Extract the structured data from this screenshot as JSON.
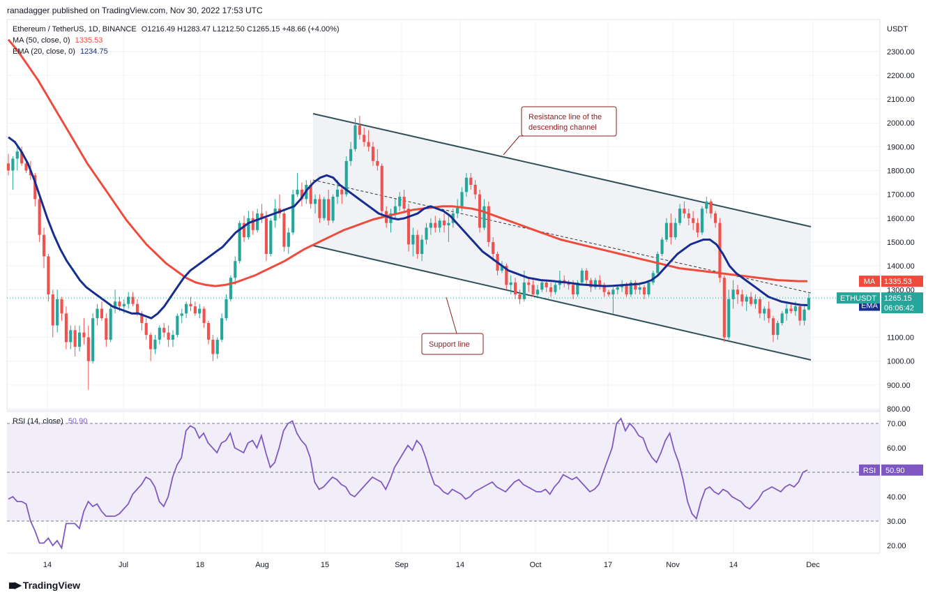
{
  "publisher": {
    "user": "ranadagger",
    "text": "ranadagger published on TradingView.com, Nov 30, 2022 17:53 UTC"
  },
  "legend": {
    "symbol": "Ethereum / TetherUS, 1D, BINANCE",
    "ohlc": "O1216.49 H1283.47 L1212.50 C1265.15 +48.66 (+4.00%)",
    "ma": {
      "label": "MA (50, close, 0)",
      "value": "1335.53"
    },
    "ema": {
      "label": "EMA (20, close, 0)",
      "value": "1234.75"
    }
  },
  "brand": "TradingView",
  "colors": {
    "up": "#26a69a",
    "down": "#ef5350",
    "ma": "#ef4b3c",
    "ema": "#162d8f",
    "rsi": "#7e57c2",
    "channel": "#2f4f57",
    "grid": "#f0f3fa"
  },
  "chart_data": {
    "type": "candlestick",
    "price_unit": "USDT",
    "y_ticks": [
      "2300.00",
      "2200.00",
      "2100.00",
      "2000.00",
      "1900.00",
      "1800.00",
      "1700.00",
      "1600.00",
      "1500.00",
      "1400.00",
      "1300.00",
      "1100.00",
      "1000.00",
      "900.00",
      "800.00"
    ],
    "ylim": [
      780,
      2400
    ],
    "x_ticks": [
      "14",
      "Jul",
      "18",
      "Aug",
      "15",
      "Sep",
      "14",
      "Oct",
      "17",
      "Nov",
      "14",
      "Dec"
    ],
    "current_price": {
      "label": "ETHUSDT",
      "value": "1265.15",
      "countdown": "06:06:42"
    },
    "ma_badge": {
      "label": "MA",
      "value": "1335.53"
    },
    "ema_badge": {
      "label": "EMA",
      "value": "1234.75"
    },
    "candles": [
      [
        1830,
        1870,
        1780,
        1800
      ],
      [
        1800,
        1860,
        1720,
        1850
      ],
      [
        1850,
        1905,
        1800,
        1880
      ],
      [
        1880,
        1900,
        1820,
        1830
      ],
      [
        1830,
        1840,
        1790,
        1800
      ],
      [
        1800,
        1840,
        1760,
        1780
      ],
      [
        1780,
        1790,
        1650,
        1680
      ],
      [
        1680,
        1700,
        1500,
        1530
      ],
      [
        1530,
        1560,
        1390,
        1440
      ],
      [
        1440,
        1450,
        1250,
        1280
      ],
      [
        1280,
        1300,
        1100,
        1150
      ],
      [
        1150,
        1300,
        1120,
        1260
      ],
      [
        1260,
        1270,
        1170,
        1200
      ],
      [
        1200,
        1230,
        1050,
        1080
      ],
      [
        1080,
        1150,
        1050,
        1130
      ],
      [
        1130,
        1150,
        1020,
        1060
      ],
      [
        1060,
        1150,
        1040,
        1120
      ],
      [
        1120,
        1180,
        1070,
        1100
      ],
      [
        1100,
        1150,
        880,
        1000
      ],
      [
        1000,
        1200,
        990,
        1180
      ],
      [
        1180,
        1240,
        1150,
        1220
      ],
      [
        1220,
        1250,
        1170,
        1180
      ],
      [
        1180,
        1200,
        1060,
        1090
      ],
      [
        1090,
        1240,
        1080,
        1220
      ],
      [
        1220,
        1300,
        1200,
        1250
      ],
      [
        1250,
        1270,
        1210,
        1230
      ],
      [
        1230,
        1260,
        1200,
        1240
      ],
      [
        1240,
        1290,
        1220,
        1270
      ],
      [
        1270,
        1290,
        1230,
        1240
      ],
      [
        1240,
        1260,
        1190,
        1200
      ],
      [
        1200,
        1210,
        1130,
        1160
      ],
      [
        1160,
        1180,
        1090,
        1110
      ],
      [
        1110,
        1120,
        1000,
        1050
      ],
      [
        1050,
        1110,
        1030,
        1090
      ],
      [
        1090,
        1150,
        1070,
        1140
      ],
      [
        1140,
        1160,
        1100,
        1120
      ],
      [
        1120,
        1150,
        1060,
        1090
      ],
      [
        1090,
        1130,
        1060,
        1110
      ],
      [
        1110,
        1200,
        1100,
        1190
      ],
      [
        1190,
        1220,
        1160,
        1200
      ],
      [
        1200,
        1250,
        1180,
        1240
      ],
      [
        1240,
        1270,
        1210,
        1230
      ],
      [
        1230,
        1250,
        1190,
        1200
      ],
      [
        1200,
        1240,
        1180,
        1220
      ],
      [
        1220,
        1230,
        1140,
        1160
      ],
      [
        1160,
        1170,
        1070,
        1090
      ],
      [
        1090,
        1110,
        1000,
        1030
      ],
      [
        1030,
        1100,
        1010,
        1090
      ],
      [
        1090,
        1200,
        1080,
        1180
      ],
      [
        1180,
        1280,
        1170,
        1260
      ],
      [
        1260,
        1360,
        1250,
        1350
      ],
      [
        1350,
        1440,
        1320,
        1420
      ],
      [
        1420,
        1590,
        1410,
        1580
      ],
      [
        1580,
        1610,
        1500,
        1520
      ],
      [
        1520,
        1630,
        1510,
        1600
      ],
      [
        1600,
        1630,
        1530,
        1550
      ],
      [
        1550,
        1640,
        1540,
        1620
      ],
      [
        1620,
        1660,
        1580,
        1600
      ],
      [
        1600,
        1630,
        1420,
        1450
      ],
      [
        1450,
        1600,
        1440,
        1590
      ],
      [
        1590,
        1680,
        1560,
        1640
      ],
      [
        1640,
        1700,
        1600,
        1620
      ],
      [
        1620,
        1640,
        1460,
        1480
      ],
      [
        1480,
        1560,
        1450,
        1540
      ],
      [
        1540,
        1720,
        1530,
        1700
      ],
      [
        1700,
        1790,
        1690,
        1720
      ],
      [
        1720,
        1750,
        1650,
        1680
      ],
      [
        1680,
        1760,
        1660,
        1740
      ],
      [
        1740,
        1760,
        1640,
        1660
      ],
      [
        1660,
        1700,
        1620,
        1680
      ],
      [
        1680,
        1700,
        1580,
        1600
      ],
      [
        1600,
        1690,
        1590,
        1680
      ],
      [
        1680,
        1720,
        1570,
        1590
      ],
      [
        1590,
        1700,
        1580,
        1690
      ],
      [
        1690,
        1760,
        1660,
        1720
      ],
      [
        1720,
        1740,
        1660,
        1700
      ],
      [
        1700,
        1860,
        1690,
        1840
      ],
      [
        1840,
        1920,
        1820,
        1890
      ],
      [
        1890,
        2020,
        1880,
        1990
      ],
      [
        1990,
        2030,
        1930,
        1950
      ],
      [
        1950,
        1980,
        1900,
        1920
      ],
      [
        1920,
        1970,
        1880,
        1900
      ],
      [
        1900,
        1920,
        1820,
        1840
      ],
      [
        1840,
        1890,
        1800,
        1820
      ],
      [
        1820,
        1830,
        1600,
        1630
      ],
      [
        1630,
        1650,
        1560,
        1580
      ],
      [
        1580,
        1640,
        1540,
        1620
      ],
      [
        1620,
        1680,
        1600,
        1650
      ],
      [
        1650,
        1710,
        1630,
        1690
      ],
      [
        1690,
        1720,
        1620,
        1640
      ],
      [
        1640,
        1660,
        1460,
        1490
      ],
      [
        1490,
        1560,
        1440,
        1530
      ],
      [
        1530,
        1550,
        1430,
        1450
      ],
      [
        1450,
        1530,
        1420,
        1510
      ],
      [
        1510,
        1580,
        1490,
        1560
      ],
      [
        1560,
        1600,
        1530,
        1580
      ],
      [
        1580,
        1610,
        1540,
        1560
      ],
      [
        1560,
        1600,
        1540,
        1590
      ],
      [
        1590,
        1620,
        1540,
        1570
      ],
      [
        1570,
        1610,
        1500,
        1580
      ],
      [
        1580,
        1640,
        1560,
        1620
      ],
      [
        1620,
        1680,
        1600,
        1650
      ],
      [
        1650,
        1730,
        1630,
        1710
      ],
      [
        1710,
        1790,
        1690,
        1770
      ],
      [
        1770,
        1790,
        1720,
        1740
      ],
      [
        1740,
        1760,
        1680,
        1700
      ],
      [
        1700,
        1720,
        1540,
        1560
      ],
      [
        1560,
        1680,
        1550,
        1650
      ],
      [
        1650,
        1670,
        1480,
        1500
      ],
      [
        1500,
        1520,
        1420,
        1450
      ],
      [
        1450,
        1460,
        1360,
        1380
      ],
      [
        1380,
        1420,
        1370,
        1400
      ],
      [
        1400,
        1410,
        1300,
        1320
      ],
      [
        1320,
        1360,
        1280,
        1330
      ],
      [
        1330,
        1350,
        1260,
        1280
      ],
      [
        1280,
        1300,
        1240,
        1260
      ],
      [
        1260,
        1380,
        1250,
        1330
      ],
      [
        1330,
        1350,
        1290,
        1320
      ],
      [
        1320,
        1340,
        1270,
        1280
      ],
      [
        1280,
        1320,
        1270,
        1300
      ],
      [
        1300,
        1340,
        1290,
        1330
      ],
      [
        1330,
        1340,
        1290,
        1310
      ],
      [
        1310,
        1330,
        1270,
        1290
      ],
      [
        1290,
        1330,
        1280,
        1320
      ],
      [
        1320,
        1380,
        1300,
        1340
      ],
      [
        1340,
        1360,
        1310,
        1330
      ],
      [
        1330,
        1340,
        1300,
        1320
      ],
      [
        1320,
        1340,
        1260,
        1280
      ],
      [
        1280,
        1340,
        1270,
        1330
      ],
      [
        1330,
        1390,
        1320,
        1380
      ],
      [
        1380,
        1390,
        1320,
        1340
      ],
      [
        1340,
        1350,
        1290,
        1310
      ],
      [
        1310,
        1350,
        1300,
        1340
      ],
      [
        1340,
        1360,
        1300,
        1320
      ],
      [
        1320,
        1330,
        1270,
        1290
      ],
      [
        1290,
        1300,
        1270,
        1280
      ],
      [
        1280,
        1310,
        1200,
        1300
      ],
      [
        1300,
        1320,
        1280,
        1310
      ],
      [
        1310,
        1340,
        1290,
        1320
      ],
      [
        1320,
        1330,
        1270,
        1280
      ],
      [
        1280,
        1340,
        1270,
        1330
      ],
      [
        1330,
        1340,
        1280,
        1300
      ],
      [
        1300,
        1320,
        1280,
        1310
      ],
      [
        1310,
        1320,
        1260,
        1280
      ],
      [
        1280,
        1340,
        1270,
        1330
      ],
      [
        1330,
        1380,
        1320,
        1370
      ],
      [
        1370,
        1460,
        1360,
        1450
      ],
      [
        1450,
        1520,
        1440,
        1510
      ],
      [
        1510,
        1600,
        1500,
        1580
      ],
      [
        1580,
        1620,
        1490,
        1520
      ],
      [
        1520,
        1600,
        1510,
        1580
      ],
      [
        1580,
        1660,
        1570,
        1640
      ],
      [
        1640,
        1670,
        1600,
        1620
      ],
      [
        1620,
        1640,
        1570,
        1600
      ],
      [
        1600,
        1630,
        1550,
        1580
      ],
      [
        1580,
        1600,
        1520,
        1540
      ],
      [
        1540,
        1650,
        1530,
        1640
      ],
      [
        1640,
        1690,
        1620,
        1670
      ],
      [
        1670,
        1680,
        1600,
        1620
      ],
      [
        1620,
        1630,
        1560,
        1580
      ],
      [
        1580,
        1600,
        1330,
        1350
      ],
      [
        1350,
        1360,
        1080,
        1100
      ],
      [
        1100,
        1300,
        1090,
        1260
      ],
      [
        1260,
        1340,
        1220,
        1300
      ],
      [
        1300,
        1320,
        1240,
        1280
      ],
      [
        1280,
        1300,
        1230,
        1250
      ],
      [
        1250,
        1280,
        1210,
        1270
      ],
      [
        1270,
        1290,
        1230,
        1240
      ],
      [
        1240,
        1280,
        1220,
        1260
      ],
      [
        1260,
        1270,
        1180,
        1200
      ],
      [
        1200,
        1230,
        1170,
        1220
      ],
      [
        1220,
        1250,
        1160,
        1180
      ],
      [
        1180,
        1190,
        1080,
        1110
      ],
      [
        1110,
        1170,
        1090,
        1160
      ],
      [
        1160,
        1210,
        1150,
        1200
      ],
      [
        1200,
        1240,
        1170,
        1220
      ],
      [
        1220,
        1240,
        1200,
        1210
      ],
      [
        1210,
        1250,
        1190,
        1230
      ],
      [
        1230,
        1240,
        1150,
        1170
      ],
      [
        1170,
        1230,
        1150,
        1216.49
      ],
      [
        1216.49,
        1283.47,
        1212.5,
        1265.15
      ]
    ],
    "ma_series": [
      2350,
      2300,
      2240,
      2180,
      2110,
      2040,
      1970,
      1900,
      1830,
      1770,
      1710,
      1650,
      1590,
      1540,
      1490,
      1450,
      1410,
      1380,
      1350,
      1330,
      1320,
      1315,
      1320,
      1330,
      1345,
      1360,
      1380,
      1400,
      1420,
      1445,
      1470,
      1490,
      1510,
      1530,
      1550,
      1565,
      1580,
      1595,
      1605,
      1615,
      1625,
      1635,
      1640,
      1645,
      1650,
      1650,
      1645,
      1640,
      1630,
      1615,
      1600,
      1585,
      1570,
      1555,
      1540,
      1525,
      1510,
      1500,
      1490,
      1480,
      1470,
      1460,
      1450,
      1440,
      1430,
      1420,
      1410,
      1400,
      1390,
      1385,
      1380,
      1375,
      1370,
      1365,
      1360,
      1355,
      1350,
      1345,
      1340,
      1338,
      1336,
      1335.53
    ],
    "ema_series": [
      1940,
      1920,
      1880,
      1830,
      1760,
      1680,
      1600,
      1530,
      1470,
      1420,
      1380,
      1340,
      1310,
      1290,
      1270,
      1250,
      1230,
      1220,
      1210,
      1200,
      1200,
      1190,
      1180,
      1200,
      1230,
      1270,
      1310,
      1350,
      1380,
      1400,
      1420,
      1440,
      1460,
      1480,
      1510,
      1540,
      1560,
      1580,
      1590,
      1600,
      1610,
      1620,
      1630,
      1640,
      1650,
      1680,
      1720,
      1750,
      1770,
      1780,
      1770,
      1740,
      1720,
      1700,
      1680,
      1660,
      1640,
      1620,
      1610,
      1600,
      1595,
      1600,
      1610,
      1620,
      1640,
      1650,
      1640,
      1630,
      1610,
      1580,
      1550,
      1520,
      1490,
      1460,
      1440,
      1420,
      1400,
      1380,
      1370,
      1360,
      1350,
      1345,
      1340,
      1338,
      1336,
      1332,
      1330,
      1326,
      1322,
      1320,
      1318,
      1316,
      1315,
      1316,
      1318,
      1320,
      1322,
      1324,
      1330,
      1340,
      1360,
      1390,
      1420,
      1450,
      1470,
      1490,
      1500,
      1510,
      1510,
      1490,
      1450,
      1400,
      1370,
      1350,
      1330,
      1310,
      1290,
      1270,
      1260,
      1250,
      1245,
      1240,
      1236,
      1234.75
    ],
    "rsi": {
      "label": "RSI (14, close)",
      "value": "50.90",
      "levels": [
        70,
        50,
        30
      ],
      "y_ticks": [
        "70.00",
        "60.00",
        "50.00",
        "40.00",
        "30.00",
        "20.00"
      ],
      "ylim": [
        18,
        72
      ],
      "values": [
        39,
        40,
        38,
        38,
        37,
        30,
        26,
        21,
        21,
        23,
        20,
        22,
        19,
        29,
        29,
        29,
        27,
        34,
        38,
        36,
        37,
        34,
        32,
        32,
        32,
        33,
        35,
        37,
        41,
        43,
        45,
        48,
        47,
        44,
        38,
        36,
        40,
        48,
        53,
        56,
        67,
        69,
        68,
        64,
        66,
        62,
        60,
        58,
        62,
        63,
        66,
        60,
        59,
        58,
        62,
        63,
        60,
        65,
        58,
        52,
        54,
        60,
        67,
        70,
        71,
        66,
        63,
        61,
        56,
        46,
        43,
        44,
        46,
        48,
        47,
        45,
        44,
        41,
        40,
        42,
        44,
        46,
        48,
        47,
        46,
        43,
        47,
        52,
        55,
        58,
        61,
        59,
        63,
        61,
        56,
        50,
        45,
        44,
        42,
        41,
        43,
        42,
        41,
        39,
        40,
        42,
        43,
        44,
        45,
        46,
        44,
        43,
        42,
        44,
        46,
        47,
        45,
        44,
        43,
        42,
        42,
        43,
        41,
        44,
        46,
        49,
        48,
        47,
        48,
        46,
        44,
        42,
        43,
        45,
        50,
        55,
        60,
        70,
        72,
        67,
        70,
        68,
        65,
        64,
        59,
        56,
        54,
        58,
        63,
        66,
        59,
        54,
        47,
        38,
        33,
        31,
        38,
        43,
        44,
        42,
        41,
        43,
        42,
        40,
        39,
        38,
        36,
        35,
        37,
        39,
        42,
        43,
        44,
        43,
        42,
        44,
        45,
        44,
        46,
        50,
        50.9
      ]
    },
    "annotations": {
      "resistance": "Resistance line of the descending channel",
      "resistance_line1": "Resistance line of the",
      "resistance_line2": "descending channel",
      "support": "Support line"
    }
  }
}
